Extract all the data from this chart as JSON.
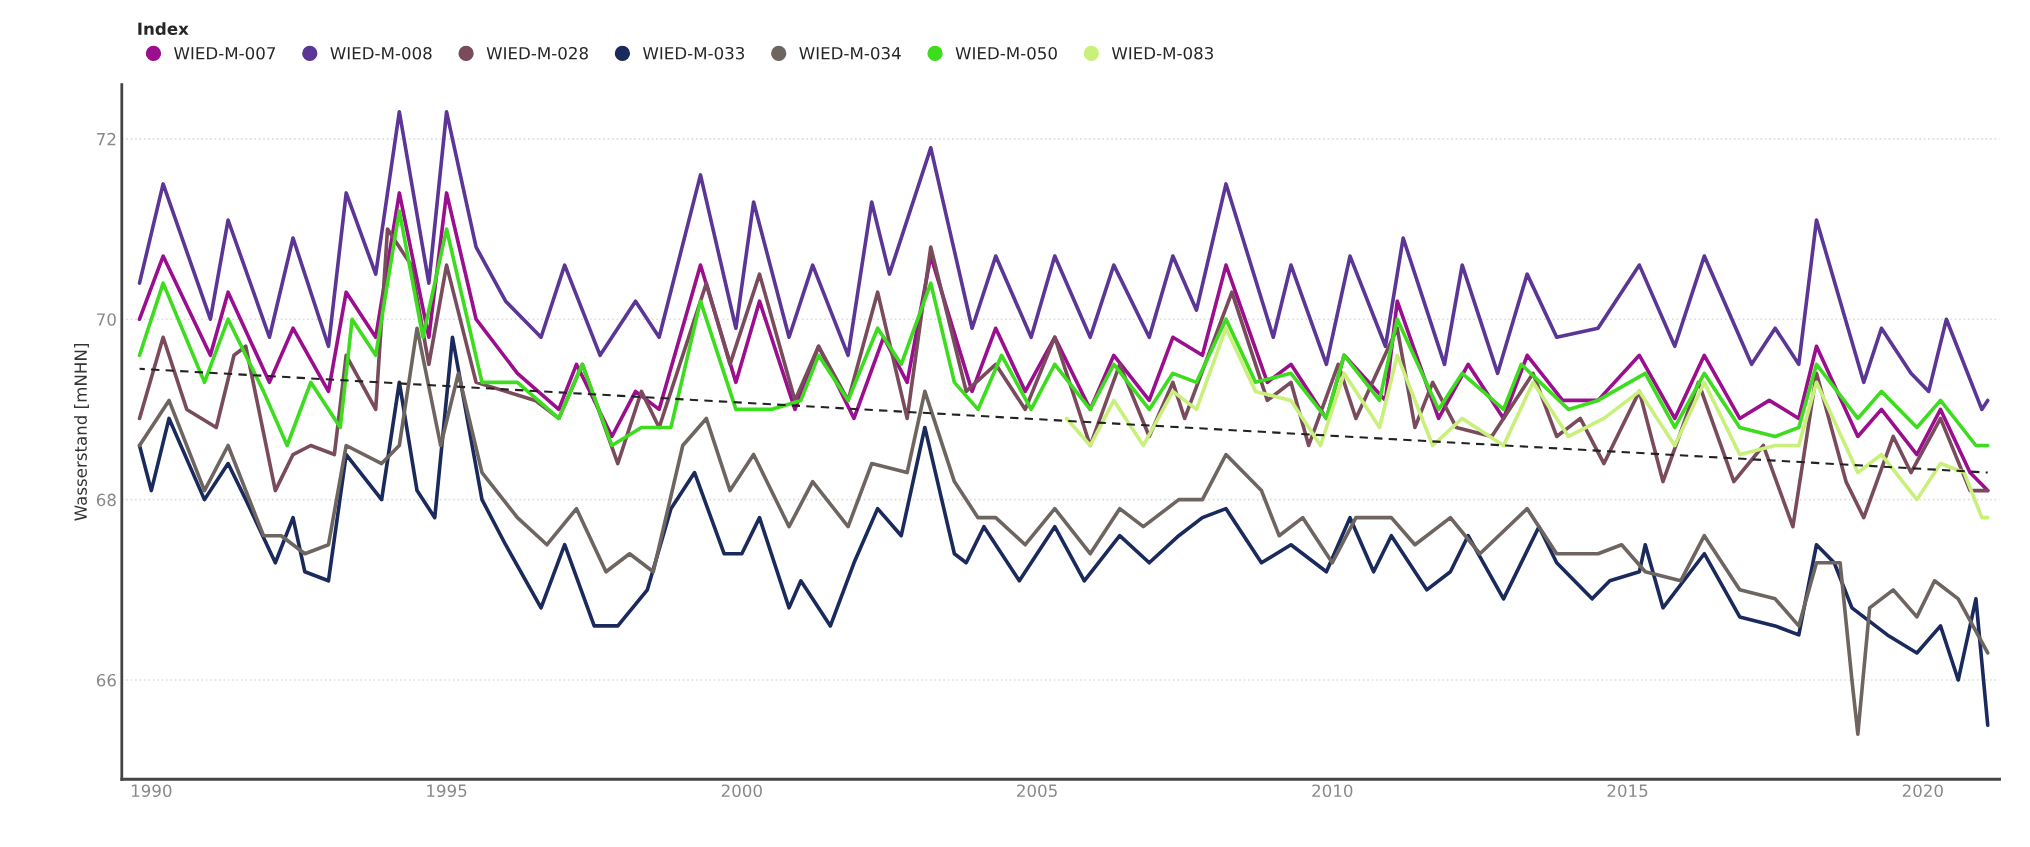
{
  "chart_data": {
    "type": "line",
    "ylabel": "Wasserstand [mNHN]",
    "legend_title": "Index",
    "legend": "top left",
    "grid": "y",
    "marker": "none",
    "xlim": [
      1989.5,
      2021.3
    ],
    "xticks": [
      1990,
      1995,
      2000,
      2005,
      2010,
      2015,
      2020
    ],
    "ylim": [
      64.9,
      72.6
    ],
    "yticks": [
      66,
      68,
      70,
      72
    ],
    "series": [
      {
        "name": "WIED-M-007",
        "color": "#9b0f8f",
        "x": [
          1989.8,
          1990.2,
          1991.0,
          1991.3,
          1992.0,
          1992.4,
          1993.0,
          1993.3,
          1993.8,
          1994.2,
          1994.7,
          1995.0,
          1995.5,
          1996.2,
          1996.9,
          1997.2,
          1997.8,
          1998.2,
          1998.6,
          1999.3,
          1999.9,
          2000.3,
          2000.9,
          2001.3,
          2001.9,
          2002.4,
          2002.8,
          2003.2,
          2003.9,
          2004.3,
          2004.8,
          2005.3,
          2005.9,
          2006.3,
          2006.9,
          2007.3,
          2007.8,
          2008.2,
          2008.9,
          2009.3,
          2009.9,
          2010.2,
          2010.9,
          2011.1,
          2011.8,
          2012.3,
          2012.9,
          2013.3,
          2013.9,
          2014.5,
          2015.2,
          2015.8,
          2016.3,
          2016.9,
          2017.4,
          2017.9,
          2018.2,
          2018.9,
          2019.3,
          2019.9,
          2020.3,
          2020.8,
          2021.1
        ],
        "values": [
          70.0,
          70.7,
          69.6,
          70.3,
          69.3,
          69.9,
          69.2,
          70.3,
          69.8,
          71.4,
          69.8,
          71.4,
          70.0,
          69.4,
          69.0,
          69.5,
          68.7,
          69.2,
          69.0,
          70.6,
          69.3,
          70.2,
          69.0,
          69.7,
          68.9,
          69.8,
          69.3,
          70.7,
          69.2,
          69.9,
          69.2,
          69.8,
          69.0,
          69.6,
          69.1,
          69.8,
          69.6,
          70.6,
          69.3,
          69.5,
          68.9,
          69.6,
          69.1,
          70.2,
          68.9,
          69.5,
          68.9,
          69.6,
          69.1,
          69.1,
          69.6,
          68.9,
          69.6,
          68.9,
          69.1,
          68.9,
          69.7,
          68.7,
          69.0,
          68.5,
          69.0,
          68.3,
          68.1
        ]
      },
      {
        "name": "WIED-M-008",
        "color": "#5b3696",
        "x": [
          1989.8,
          1990.2,
          1991.0,
          1991.3,
          1992.0,
          1992.4,
          1993.0,
          1993.3,
          1993.8,
          1994.2,
          1994.7,
          1995.0,
          1995.5,
          1996.0,
          1996.6,
          1997.0,
          1997.6,
          1998.2,
          1998.6,
          1999.3,
          1999.9,
          2000.2,
          2000.8,
          2001.2,
          2001.8,
          2002.2,
          2002.5,
          2003.2,
          2003.9,
          2004.3,
          2004.9,
          2005.3,
          2005.9,
          2006.3,
          2006.9,
          2007.3,
          2007.7,
          2008.2,
          2009.0,
          2009.3,
          2009.9,
          2010.3,
          2010.9,
          2011.2,
          2011.9,
          2012.2,
          2012.8,
          2013.3,
          2013.8,
          2014.5,
          2015.2,
          2015.8,
          2016.3,
          2017.1,
          2017.5,
          2017.9,
          2018.2,
          2019.0,
          2019.3,
          2019.8,
          2020.1,
          2020.4,
          2021.0,
          2021.1
        ],
        "values": [
          70.4,
          71.5,
          70.0,
          71.1,
          69.8,
          70.9,
          69.7,
          71.4,
          70.5,
          72.3,
          70.4,
          72.3,
          70.8,
          70.2,
          69.8,
          70.6,
          69.6,
          70.2,
          69.8,
          71.6,
          69.9,
          71.3,
          69.8,
          70.6,
          69.6,
          71.3,
          70.5,
          71.9,
          69.9,
          70.7,
          69.8,
          70.7,
          69.8,
          70.6,
          69.8,
          70.7,
          70.1,
          71.5,
          69.8,
          70.6,
          69.5,
          70.7,
          69.7,
          70.9,
          69.5,
          70.6,
          69.4,
          70.5,
          69.8,
          69.9,
          70.6,
          69.7,
          70.7,
          69.5,
          69.9,
          69.5,
          71.1,
          69.3,
          69.9,
          69.4,
          69.2,
          70.0,
          69.0,
          69.1
        ]
      },
      {
        "name": "WIED-M-028",
        "color": "#7a4b5c",
        "x": [
          1989.8,
          1990.2,
          1990.6,
          1991.1,
          1991.4,
          1991.6,
          1992.1,
          1992.4,
          1992.7,
          1993.1,
          1993.3,
          1993.8,
          1994.0,
          1994.4,
          1994.7,
          1995.0,
          1995.5,
          1996.5,
          1996.9,
          1997.3,
          1997.9,
          1998.3,
          1998.6,
          1999.4,
          1999.8,
          2000.3,
          2000.9,
          2001.3,
          2001.8,
          2002.3,
          2002.8,
          2003.2,
          2003.8,
          2004.3,
          2004.8,
          2005.3,
          2005.9,
          2006.4,
          2006.9,
          2007.3,
          2007.5,
          2008.3,
          2008.9,
          2009.3,
          2009.6,
          2010.1,
          2010.4,
          2011.1,
          2011.4,
          2011.7,
          2012.1,
          2012.7,
          2013.4,
          2013.8,
          2014.2,
          2014.6,
          2015.2,
          2015.6,
          2016.2,
          2016.8,
          2017.3,
          2017.8,
          2018.2,
          2018.7,
          2019.0,
          2019.5,
          2019.8,
          2020.3,
          2020.8,
          2021.1
        ],
        "values": [
          68.9,
          69.8,
          69.0,
          68.8,
          69.6,
          69.7,
          68.1,
          68.5,
          68.6,
          68.5,
          69.6,
          69.0,
          71.0,
          70.6,
          69.5,
          70.6,
          69.3,
          69.1,
          68.9,
          69.5,
          68.4,
          69.2,
          68.8,
          70.4,
          69.5,
          70.5,
          69.1,
          69.7,
          69.1,
          70.3,
          68.9,
          70.8,
          69.2,
          69.5,
          69.0,
          69.8,
          68.6,
          69.5,
          68.7,
          69.3,
          68.9,
          70.3,
          69.1,
          69.3,
          68.6,
          69.5,
          68.9,
          69.9,
          68.8,
          69.3,
          68.8,
          68.7,
          69.4,
          68.7,
          68.9,
          68.4,
          69.2,
          68.2,
          69.3,
          68.2,
          68.6,
          67.7,
          69.4,
          68.2,
          67.8,
          68.7,
          68.3,
          68.9,
          68.1,
          68.1
        ]
      },
      {
        "name": "WIED-M-033",
        "color": "#1b2a5c",
        "x": [
          1989.8,
          1990.0,
          1990.3,
          1990.9,
          1991.3,
          1991.6,
          1992.1,
          1992.4,
          1992.6,
          1993.0,
          1993.3,
          1993.9,
          1994.2,
          1994.5,
          1994.8,
          1995.1,
          1995.6,
          1996.0,
          1996.6,
          1997.0,
          1997.5,
          1997.9,
          1998.4,
          1998.8,
          1999.2,
          1999.7,
          2000.0,
          2000.3,
          2000.8,
          2001.0,
          2001.5,
          2001.9,
          2002.3,
          2002.7,
          2003.1,
          2003.6,
          2003.8,
          2004.1,
          2004.7,
          2005.3,
          2005.8,
          2006.4,
          2006.9,
          2007.4,
          2007.8,
          2008.2,
          2008.8,
          2009.3,
          2009.9,
          2010.3,
          2010.7,
          2011.0,
          2011.6,
          2012.0,
          2012.3,
          2012.9,
          2013.5,
          2013.8,
          2014.4,
          2014.7,
          2015.2,
          2015.3,
          2015.6,
          2016.3,
          2016.9,
          2017.5,
          2017.9,
          2018.2,
          2018.5,
          2018.8,
          2019.4,
          2019.9,
          2020.3,
          2020.6,
          2020.9,
          2021.1
        ],
        "values": [
          68.6,
          68.1,
          68.9,
          68.0,
          68.4,
          68.0,
          67.3,
          67.8,
          67.2,
          67.1,
          68.5,
          68.0,
          69.3,
          68.1,
          67.8,
          69.8,
          68.0,
          67.5,
          66.8,
          67.5,
          66.6,
          66.6,
          67.0,
          67.9,
          68.3,
          67.4,
          67.4,
          67.8,
          66.8,
          67.1,
          66.6,
          67.3,
          67.9,
          67.6,
          68.8,
          67.4,
          67.3,
          67.7,
          67.1,
          67.7,
          67.1,
          67.6,
          67.3,
          67.6,
          67.8,
          67.9,
          67.3,
          67.5,
          67.2,
          67.8,
          67.2,
          67.6,
          67.0,
          67.2,
          67.6,
          66.9,
          67.7,
          67.3,
          66.9,
          67.1,
          67.2,
          67.5,
          66.8,
          67.4,
          66.7,
          66.6,
          66.5,
          67.5,
          67.3,
          66.8,
          66.5,
          66.3,
          66.6,
          66.0,
          66.9,
          65.5
        ]
      },
      {
        "name": "WIED-M-034",
        "color": "#6e6560",
        "x": [
          1989.8,
          1990.3,
          1990.9,
          1991.3,
          1991.9,
          1992.2,
          1992.6,
          1993.0,
          1993.3,
          1993.9,
          1994.2,
          1994.5,
          1994.9,
          1995.2,
          1995.6,
          1996.2,
          1996.7,
          1997.2,
          1997.7,
          1998.1,
          1998.5,
          1999.0,
          1999.4,
          1999.8,
          2000.2,
          2000.8,
          2001.2,
          2001.8,
          2002.2,
          2002.8,
          2003.1,
          2003.6,
          2004.0,
          2004.3,
          2004.8,
          2005.3,
          2005.9,
          2006.4,
          2006.8,
          2007.4,
          2007.8,
          2008.2,
          2008.8,
          2009.1,
          2009.5,
          2010.0,
          2010.4,
          2011.0,
          2011.4,
          2012.0,
          2012.5,
          2013.3,
          2013.8,
          2014.5,
          2014.9,
          2015.3,
          2015.9,
          2016.3,
          2016.9,
          2017.5,
          2017.9,
          2018.2,
          2018.6,
          2018.8,
          2018.9,
          2019.1,
          2019.5,
          2019.9,
          2020.2,
          2020.6,
          2021.1
        ],
        "values": [
          68.6,
          69.1,
          68.1,
          68.6,
          67.6,
          67.6,
          67.4,
          67.5,
          68.6,
          68.4,
          68.6,
          69.9,
          68.6,
          69.4,
          68.3,
          67.8,
          67.5,
          67.9,
          67.2,
          67.4,
          67.2,
          68.6,
          68.9,
          68.1,
          68.5,
          67.7,
          68.2,
          67.7,
          68.4,
          68.3,
          69.2,
          68.2,
          67.8,
          67.8,
          67.5,
          67.9,
          67.4,
          67.9,
          67.7,
          68.0,
          68.0,
          68.5,
          68.1,
          67.6,
          67.8,
          67.3,
          67.8,
          67.8,
          67.5,
          67.8,
          67.4,
          67.9,
          67.4,
          67.4,
          67.5,
          67.2,
          67.1,
          67.6,
          67.0,
          66.9,
          66.6,
          67.3,
          67.3,
          66.0,
          65.4,
          66.8,
          67.0,
          66.7,
          67.1,
          66.9,
          66.3
        ]
      },
      {
        "name": "WIED-M-050",
        "color": "#3ddc1e",
        "x": [
          1989.8,
          1990.2,
          1990.9,
          1991.3,
          1991.9,
          1992.3,
          1992.7,
          1993.2,
          1993.4,
          1993.8,
          1994.2,
          1994.6,
          1995.0,
          1995.6,
          1996.2,
          1996.9,
          1997.3,
          1997.8,
          1998.3,
          1998.8,
          1999.3,
          1999.9,
          2000.5,
          2001.0,
          2001.3,
          2001.8,
          2002.3,
          2002.7,
          2003.2,
          2003.6,
          2004.0,
          2004.4,
          2004.9,
          2005.3,
          2005.9,
          2006.3,
          2006.9,
          2007.3,
          2007.7,
          2008.2,
          2008.7,
          2009.3,
          2009.9,
          2010.2,
          2010.8,
          2011.1,
          2011.8,
          2012.2,
          2012.9,
          2013.2,
          2014.0,
          2014.5,
          2015.3,
          2015.8,
          2016.3,
          2016.9,
          2017.5,
          2017.9,
          2018.2,
          2018.9,
          2019.3,
          2019.9,
          2020.3,
          2020.9,
          2021.1
        ],
        "values": [
          69.6,
          70.4,
          69.3,
          70.0,
          69.2,
          68.6,
          69.3,
          68.8,
          70.0,
          69.6,
          71.2,
          69.8,
          71.0,
          69.3,
          69.3,
          68.9,
          69.5,
          68.6,
          68.8,
          68.8,
          70.2,
          69.0,
          69.0,
          69.1,
          69.6,
          69.1,
          69.9,
          69.5,
          70.4,
          69.3,
          69.0,
          69.6,
          69.0,
          69.5,
          69.0,
          69.5,
          69.0,
          69.4,
          69.3,
          70.0,
          69.3,
          69.4,
          68.9,
          69.6,
          69.1,
          70.0,
          69.0,
          69.4,
          69.0,
          69.5,
          69.0,
          69.1,
          69.4,
          68.8,
          69.4,
          68.8,
          68.7,
          68.8,
          69.5,
          68.9,
          69.2,
          68.8,
          69.1,
          68.6,
          68.6
        ]
      },
      {
        "name": "WIED-M-083",
        "color": "#c8f07a",
        "x": [
          2005.5,
          2005.9,
          2006.3,
          2006.8,
          2007.3,
          2007.7,
          2008.2,
          2008.7,
          2009.3,
          2009.8,
          2010.2,
          2010.8,
          2011.1,
          2011.7,
          2012.2,
          2012.9,
          2013.4,
          2014.0,
          2014.6,
          2015.2,
          2015.8,
          2016.3,
          2016.9,
          2017.5,
          2017.9,
          2018.2,
          2018.9,
          2019.3,
          2019.9,
          2020.3,
          2020.7,
          2021.0,
          2021.1
        ],
        "values": [
          68.9,
          68.6,
          69.1,
          68.6,
          69.2,
          69.0,
          69.9,
          69.2,
          69.1,
          68.6,
          69.4,
          68.8,
          69.6,
          68.6,
          68.9,
          68.6,
          69.3,
          68.7,
          68.9,
          69.2,
          68.6,
          69.3,
          68.5,
          68.6,
          68.6,
          69.3,
          68.3,
          68.5,
          68.0,
          68.4,
          68.3,
          67.8,
          67.8
        ]
      },
      {
        "color": "#222222",
        "line_style": "dashed",
        "x": [
          1989.8,
          2021.1
        ],
        "values": [
          69.45,
          68.3
        ]
      }
    ]
  }
}
